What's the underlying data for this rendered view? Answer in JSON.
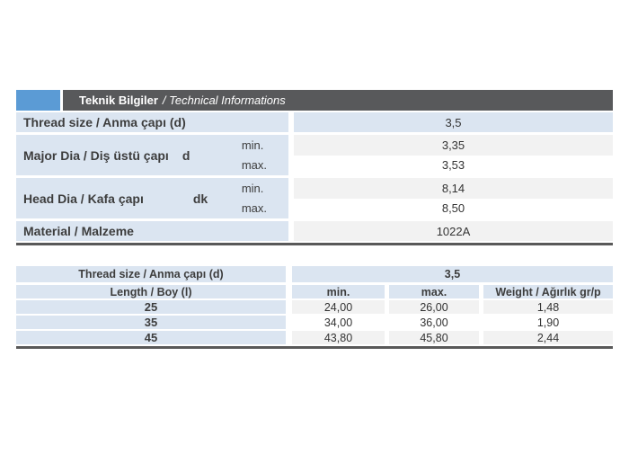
{
  "header": {
    "title_bold": "Teknik Bilgiler",
    "title_italic": "/ Technical Informations"
  },
  "colors": {
    "accent_blue": "#5b9bd5",
    "titlebar_gray": "#58595b",
    "cell_blue": "#dbe5f1",
    "cell_gray": "#f2f2f2"
  },
  "spec_table": {
    "thread": {
      "label": "Thread size / Anma çapı (d)",
      "value": "3,5"
    },
    "major": {
      "label": "Major Dia / Diş üstü çapı",
      "symbol": "d",
      "min_label": "min.",
      "max_label": "max.",
      "min_value": "3,35",
      "max_value": "3,53"
    },
    "head": {
      "label": "Head Dia / Kafa çapı",
      "symbol": "dk",
      "min_label": "min.",
      "max_label": "max.",
      "min_value": "8,14",
      "max_value": "8,50"
    },
    "material": {
      "label": "Material / Malzeme",
      "value": "1022A"
    }
  },
  "length_table": {
    "thread_label": "Thread size / Anma çapı (d)",
    "thread_value": "3,5",
    "columns": {
      "length": "Length / Boy (l)",
      "min": "min.",
      "max": "max.",
      "weight": "Weight / Ağırlık gr/p"
    },
    "rows": [
      {
        "length": "25",
        "min": "24,00",
        "max": "26,00",
        "weight": "1,48"
      },
      {
        "length": "35",
        "min": "34,00",
        "max": "36,00",
        "weight": "1,90"
      },
      {
        "length": "45",
        "min": "43,80",
        "max": "45,80",
        "weight": "2,44"
      }
    ]
  }
}
